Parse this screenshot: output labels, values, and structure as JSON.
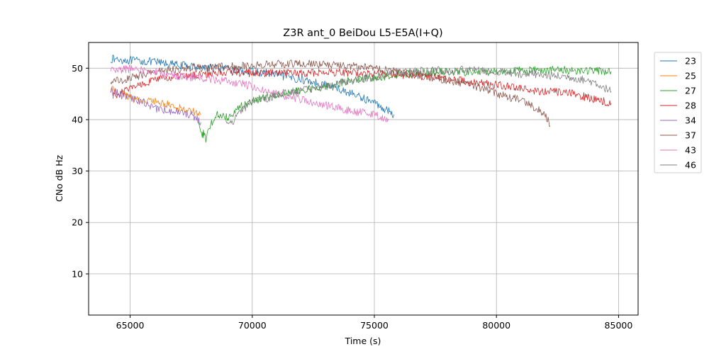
{
  "chart_data": {
    "type": "line",
    "title": "Z3R ant_0 BeiDou L5-E5A(I+Q)",
    "xlabel": "Time (s)",
    "ylabel": "CNo dB Hz",
    "xlim": [
      63300,
      85800
    ],
    "ylim": [
      2,
      55
    ],
    "xticks": [
      65000,
      70000,
      75000,
      80000,
      85000
    ],
    "yticks": [
      10,
      20,
      30,
      40,
      50
    ],
    "grid": true,
    "legend_position": "outside-right",
    "series": [
      {
        "name": "23",
        "color": "#1f77b4",
        "points": [
          [
            64200,
            51.8
          ],
          [
            65000,
            51.5
          ],
          [
            66000,
            51.2
          ],
          [
            67000,
            50.6
          ],
          [
            68000,
            50.2
          ],
          [
            69000,
            49.8
          ],
          [
            70000,
            49.3
          ],
          [
            71000,
            48.7
          ],
          [
            72000,
            47.8
          ],
          [
            73000,
            46.8
          ],
          [
            74000,
            45.2
          ],
          [
            75000,
            43.3
          ],
          [
            75800,
            41.0
          ]
        ]
      },
      {
        "name": "25",
        "color": "#ff7f0e",
        "points": [
          [
            64200,
            45.8
          ],
          [
            64500,
            45.5
          ],
          [
            65000,
            44.2
          ],
          [
            65500,
            43.8
          ],
          [
            66000,
            43.5
          ],
          [
            66500,
            43.0
          ],
          [
            67000,
            42.3
          ],
          [
            67500,
            41.8
          ],
          [
            67900,
            41.0
          ]
        ]
      },
      {
        "name": "27",
        "color": "#2ca02c",
        "points": [
          [
            67800,
            40.0
          ],
          [
            67950,
            36.5
          ],
          [
            68000,
            37.5
          ],
          [
            68100,
            36.0
          ],
          [
            68300,
            39.0
          ],
          [
            68600,
            41.0
          ],
          [
            69000,
            40.5
          ],
          [
            69500,
            42.5
          ],
          [
            70000,
            43.5
          ],
          [
            70500,
            44.5
          ],
          [
            71000,
            45.0
          ],
          [
            72000,
            45.5
          ],
          [
            73000,
            46.5
          ],
          [
            74000,
            47.5
          ],
          [
            75000,
            48.2
          ],
          [
            76000,
            48.8
          ],
          [
            77000,
            49.2
          ],
          [
            78000,
            49.3
          ],
          [
            79000,
            49.2
          ],
          [
            80000,
            49.4
          ],
          [
            81000,
            49.6
          ],
          [
            82000,
            49.7
          ],
          [
            83000,
            49.6
          ],
          [
            84000,
            49.5
          ],
          [
            84700,
            49.4
          ]
        ]
      },
      {
        "name": "28",
        "color": "#d62728",
        "points": [
          [
            64300,
            44.5
          ],
          [
            65000,
            46.0
          ],
          [
            65500,
            47.0
          ],
          [
            66000,
            47.8
          ],
          [
            67000,
            48.3
          ],
          [
            68000,
            48.8
          ],
          [
            69000,
            49.3
          ],
          [
            70000,
            49.0
          ],
          [
            71000,
            49.1
          ],
          [
            72000,
            49.0
          ],
          [
            73000,
            49.3
          ],
          [
            74000,
            49.1
          ],
          [
            75000,
            48.8
          ],
          [
            76000,
            48.7
          ],
          [
            77000,
            48.5
          ],
          [
            78000,
            48.0
          ],
          [
            79000,
            47.2
          ],
          [
            80000,
            46.8
          ],
          [
            81000,
            46.0
          ],
          [
            82000,
            45.5
          ],
          [
            83000,
            45.1
          ],
          [
            84000,
            44.0
          ],
          [
            84700,
            43.2
          ]
        ]
      },
      {
        "name": "34",
        "color": "#9467bd",
        "points": [
          [
            64200,
            45.6
          ],
          [
            64800,
            44.5
          ],
          [
            65500,
            43.5
          ],
          [
            66000,
            42.2
          ],
          [
            66500,
            41.8
          ],
          [
            67000,
            41.5
          ],
          [
            67500,
            41.0
          ],
          [
            67900,
            39.5
          ]
        ]
      },
      {
        "name": "37",
        "color": "#8c564b",
        "points": [
          [
            64200,
            47.5
          ],
          [
            64800,
            47.8
          ],
          [
            65500,
            48.8
          ],
          [
            66000,
            49.3
          ],
          [
            67000,
            49.8
          ],
          [
            68000,
            50.1
          ],
          [
            69000,
            50.3
          ],
          [
            70000,
            50.6
          ],
          [
            71000,
            50.8
          ],
          [
            72000,
            50.9
          ],
          [
            73000,
            50.7
          ],
          [
            74000,
            50.4
          ],
          [
            75000,
            50.0
          ],
          [
            76000,
            49.3
          ],
          [
            77000,
            48.5
          ],
          [
            78000,
            47.7
          ],
          [
            79000,
            46.8
          ],
          [
            80000,
            45.0
          ],
          [
            81000,
            43.8
          ],
          [
            81500,
            42.5
          ],
          [
            82000,
            41.0
          ],
          [
            82200,
            38.8
          ]
        ]
      },
      {
        "name": "43",
        "color": "#e377c2",
        "points": [
          [
            64200,
            49.6
          ],
          [
            65000,
            49.8
          ],
          [
            66000,
            49.3
          ],
          [
            67000,
            48.4
          ],
          [
            68000,
            48.0
          ],
          [
            69000,
            47.5
          ],
          [
            70000,
            46.5
          ],
          [
            71000,
            45.0
          ],
          [
            72000,
            44.0
          ],
          [
            73000,
            42.8
          ],
          [
            74000,
            41.8
          ],
          [
            75000,
            41.0
          ],
          [
            75600,
            40.0
          ]
        ]
      },
      {
        "name": "46",
        "color": "#7f7f7f",
        "points": [
          [
            68900,
            40.0
          ],
          [
            69200,
            39.5
          ],
          [
            69600,
            42.0
          ],
          [
            70000,
            43.5
          ],
          [
            70500,
            44.0
          ],
          [
            71000,
            44.8
          ],
          [
            72000,
            45.8
          ],
          [
            73000,
            46.5
          ],
          [
            74000,
            47.5
          ],
          [
            75000,
            48.3
          ],
          [
            76000,
            49.0
          ],
          [
            77000,
            49.5
          ],
          [
            78000,
            49.6
          ],
          [
            79000,
            49.7
          ],
          [
            80000,
            49.3
          ],
          [
            81000,
            48.9
          ],
          [
            82000,
            48.6
          ],
          [
            83000,
            48.3
          ],
          [
            84000,
            47.3
          ],
          [
            84700,
            45.5
          ]
        ]
      }
    ]
  }
}
